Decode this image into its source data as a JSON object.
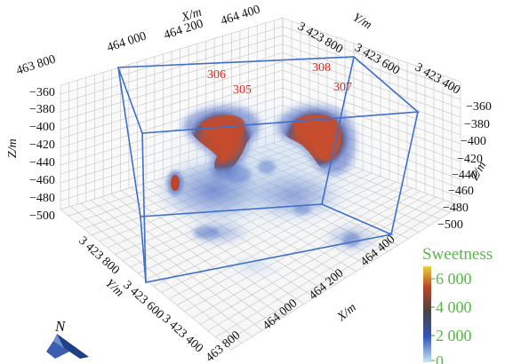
{
  "axes": {
    "x_title": "X/m",
    "x_ticks_top": [
      "463 800",
      "464 000",
      "464 200",
      "464 400"
    ],
    "x_ticks_bottom": [
      "463 800",
      "464 000",
      "464 200",
      "464 400"
    ],
    "y_title": "Y/m",
    "y_ticks_top": [
      "3 423 800",
      "3 423 600",
      "3 423 400"
    ],
    "y_ticks_bottom": [
      "3 423 800",
      "3 423 600",
      "3 423 400"
    ],
    "z_title": "Z/m",
    "z_ticks_left": [
      "−360",
      "−380",
      "−400",
      "−420",
      "−440",
      "−460",
      "−480",
      "−500"
    ],
    "z_ticks_right": [
      "−360",
      "−380",
      "−400",
      "−420",
      "−440",
      "−460",
      "−480",
      "−500"
    ]
  },
  "wells": [
    {
      "label": "306"
    },
    {
      "label": "305"
    },
    {
      "label": "308"
    },
    {
      "label": "307"
    }
  ],
  "colorbar": {
    "title": "Sweetness",
    "ticks": [
      "6 000",
      "4 000",
      "2 000",
      "0"
    ],
    "values": [
      6000,
      4000,
      2000,
      0
    ],
    "colors": [
      "#e6d23c",
      "#b8462a",
      "#444444",
      "#3456b8",
      "#c8e6f6"
    ]
  },
  "compass": {
    "label": "N"
  },
  "colors": {
    "well_label": "#e8251e",
    "box_edge": "#3f6fc8",
    "grid": "#bcbcbc",
    "colorbar_text": "#58b84a",
    "high_value": "#c24a2a",
    "low_value": "#4b6cc4"
  }
}
